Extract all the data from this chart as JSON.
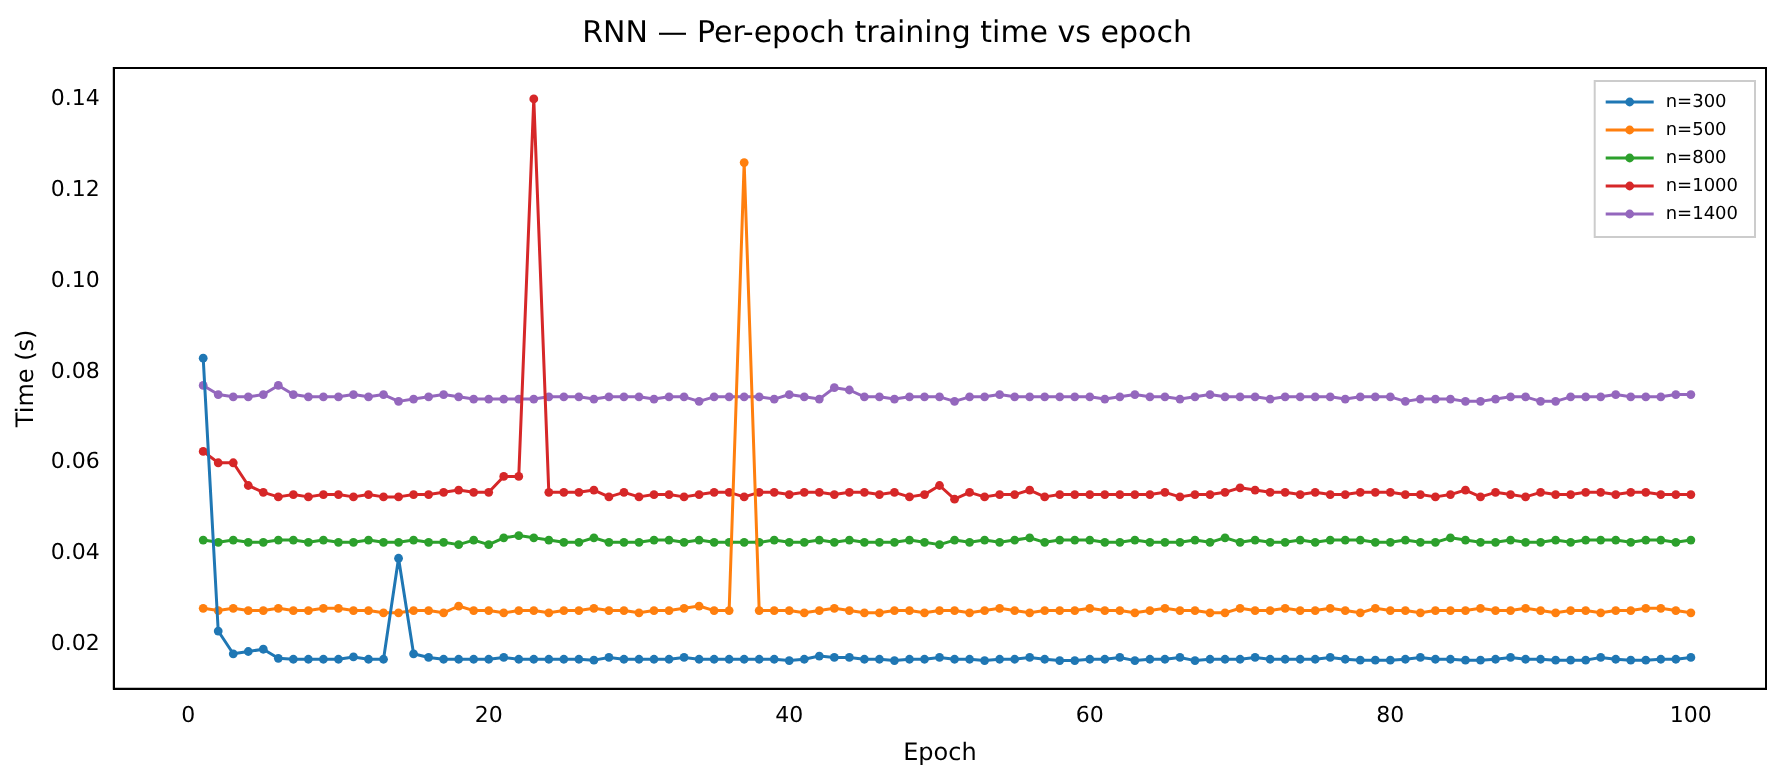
{
  "chart_data": {
    "type": "line",
    "title": "RNN — Per-epoch training time vs epoch",
    "xlabel": "Epoch",
    "ylabel": "Time (s)",
    "x": [
      1,
      2,
      3,
      4,
      5,
      6,
      7,
      8,
      9,
      10,
      11,
      12,
      13,
      14,
      15,
      16,
      17,
      18,
      19,
      20,
      21,
      22,
      23,
      24,
      25,
      26,
      27,
      28,
      29,
      30,
      31,
      32,
      33,
      34,
      35,
      36,
      37,
      38,
      39,
      40,
      41,
      42,
      43,
      44,
      45,
      46,
      47,
      48,
      49,
      50,
      51,
      52,
      53,
      54,
      55,
      56,
      57,
      58,
      59,
      60,
      61,
      62,
      63,
      64,
      65,
      66,
      67,
      68,
      69,
      70,
      71,
      72,
      73,
      74,
      75,
      76,
      77,
      78,
      79,
      80,
      81,
      82,
      83,
      84,
      85,
      86,
      87,
      88,
      89,
      90,
      91,
      92,
      93,
      94,
      95,
      96,
      97,
      98,
      99,
      100
    ],
    "xlim": [
      -4.95,
      105
    ],
    "xticks": [
      0,
      20,
      40,
      60,
      80,
      100
    ],
    "ylim": [
      0.0103,
      0.1468
    ],
    "yticks": [
      0.02,
      0.04,
      0.06,
      0.08,
      {
        "value": 0.1,
        "label": "0.10"
      },
      0.12,
      0.14
    ],
    "legend": "top right",
    "grid": false,
    "marker": "circle",
    "line_style": "solid",
    "series": [
      {
        "name": "n=300",
        "color": "#1f77b4",
        "values": [
          0.083,
          0.023,
          0.018,
          0.0185,
          0.019,
          0.017,
          0.0168,
          0.0168,
          0.0168,
          0.0168,
          0.0173,
          0.0168,
          0.0168,
          0.039,
          0.018,
          0.0172,
          0.0168,
          0.0168,
          0.0168,
          0.0168,
          0.0172,
          0.0168,
          0.0168,
          0.0168,
          0.0168,
          0.0168,
          0.0166,
          0.0172,
          0.0168,
          0.0168,
          0.0168,
          0.0168,
          0.0172,
          0.0168,
          0.0168,
          0.0168,
          0.0168,
          0.0168,
          0.0168,
          0.0165,
          0.0168,
          0.0175,
          0.0172,
          0.0172,
          0.0168,
          0.0168,
          0.0165,
          0.0168,
          0.0168,
          0.0172,
          0.0168,
          0.0168,
          0.0165,
          0.0168,
          0.0168,
          0.0172,
          0.0168,
          0.0165,
          0.0165,
          0.0168,
          0.0168,
          0.0172,
          0.0165,
          0.0168,
          0.0168,
          0.0172,
          0.0165,
          0.0168,
          0.0168,
          0.0168,
          0.0172,
          0.0168,
          0.0168,
          0.0168,
          0.0168,
          0.0172,
          0.0168,
          0.0166,
          0.0166,
          0.0166,
          0.0168,
          0.0172,
          0.0168,
          0.0168,
          0.0166,
          0.0166,
          0.0168,
          0.0172,
          0.0168,
          0.0168,
          0.0166,
          0.0166,
          0.0166,
          0.0172,
          0.0168,
          0.0166,
          0.0166,
          0.0168,
          0.0168,
          0.0172
        ]
      },
      {
        "name": "n=500",
        "color": "#ff7f0e",
        "values": [
          0.028,
          0.0275,
          0.028,
          0.0275,
          0.0275,
          0.028,
          0.0275,
          0.0275,
          0.028,
          0.028,
          0.0275,
          0.0275,
          0.027,
          0.027,
          0.0275,
          0.0275,
          0.027,
          0.0285,
          0.0275,
          0.0275,
          0.027,
          0.0275,
          0.0275,
          0.027,
          0.0275,
          0.0275,
          0.028,
          0.0275,
          0.0275,
          0.027,
          0.0275,
          0.0275,
          0.028,
          0.0285,
          0.0275,
          0.0275,
          0.126,
          0.0275,
          0.0275,
          0.0275,
          0.027,
          0.0275,
          0.028,
          0.0275,
          0.027,
          0.027,
          0.0275,
          0.0275,
          0.027,
          0.0275,
          0.0275,
          0.027,
          0.0275,
          0.028,
          0.0275,
          0.027,
          0.0275,
          0.0275,
          0.0275,
          0.028,
          0.0275,
          0.0275,
          0.027,
          0.0275,
          0.028,
          0.0275,
          0.0275,
          0.027,
          0.027,
          0.028,
          0.0275,
          0.0275,
          0.028,
          0.0275,
          0.0275,
          0.028,
          0.0275,
          0.027,
          0.028,
          0.0275,
          0.0275,
          0.027,
          0.0275,
          0.0275,
          0.0275,
          0.028,
          0.0275,
          0.0275,
          0.028,
          0.0275,
          0.027,
          0.0275,
          0.0275,
          0.027,
          0.0275,
          0.0275,
          0.028,
          0.028,
          0.0275,
          0.027
        ]
      },
      {
        "name": "n=800",
        "color": "#2ca02c",
        "values": [
          0.043,
          0.0425,
          0.043,
          0.0425,
          0.0425,
          0.043,
          0.043,
          0.0425,
          0.043,
          0.0425,
          0.0425,
          0.043,
          0.0425,
          0.0425,
          0.043,
          0.0425,
          0.0425,
          0.042,
          0.043,
          0.042,
          0.0435,
          0.044,
          0.0435,
          0.043,
          0.0425,
          0.0425,
          0.0435,
          0.0425,
          0.0425,
          0.0425,
          0.043,
          0.043,
          0.0425,
          0.043,
          0.0425,
          0.0425,
          0.0425,
          0.0425,
          0.043,
          0.0425,
          0.0425,
          0.043,
          0.0425,
          0.043,
          0.0425,
          0.0425,
          0.0425,
          0.043,
          0.0425,
          0.042,
          0.043,
          0.0425,
          0.043,
          0.0425,
          0.043,
          0.0435,
          0.0425,
          0.043,
          0.043,
          0.043,
          0.0425,
          0.0425,
          0.043,
          0.0425,
          0.0425,
          0.0425,
          0.043,
          0.0425,
          0.0435,
          0.0425,
          0.043,
          0.0425,
          0.0425,
          0.043,
          0.0425,
          0.043,
          0.043,
          0.043,
          0.0425,
          0.0425,
          0.043,
          0.0425,
          0.0425,
          0.0435,
          0.043,
          0.0425,
          0.0425,
          0.043,
          0.0425,
          0.0425,
          0.043,
          0.0425,
          0.043,
          0.043,
          0.043,
          0.0425,
          0.043,
          0.043,
          0.0425,
          0.043
        ]
      },
      {
        "name": "n=1000",
        "color": "#d62728",
        "values": [
          0.0625,
          0.06,
          0.06,
          0.055,
          0.0535,
          0.0525,
          0.053,
          0.0525,
          0.053,
          0.053,
          0.0525,
          0.053,
          0.0525,
          0.0525,
          0.053,
          0.053,
          0.0535,
          0.054,
          0.0535,
          0.0535,
          0.057,
          0.057,
          0.14,
          0.0535,
          0.0535,
          0.0535,
          0.054,
          0.0525,
          0.0535,
          0.0525,
          0.053,
          0.053,
          0.0525,
          0.053,
          0.0535,
          0.0535,
          0.0525,
          0.0535,
          0.0535,
          0.053,
          0.0535,
          0.0535,
          0.053,
          0.0535,
          0.0535,
          0.053,
          0.0535,
          0.0525,
          0.053,
          0.055,
          0.052,
          0.0535,
          0.0525,
          0.053,
          0.053,
          0.054,
          0.0525,
          0.053,
          0.053,
          0.053,
          0.053,
          0.053,
          0.053,
          0.053,
          0.0535,
          0.0525,
          0.053,
          0.053,
          0.0535,
          0.0545,
          0.054,
          0.0535,
          0.0535,
          0.053,
          0.0535,
          0.053,
          0.053,
          0.0535,
          0.0535,
          0.0535,
          0.053,
          0.053,
          0.0525,
          0.053,
          0.054,
          0.0525,
          0.0535,
          0.053,
          0.0525,
          0.0535,
          0.053,
          0.053,
          0.0535,
          0.0535,
          0.053,
          0.0535,
          0.0535,
          0.053,
          0.053,
          0.053
        ]
      },
      {
        "name": "n=1400",
        "color": "#9467bd",
        "values": [
          0.077,
          0.075,
          0.0745,
          0.0745,
          0.075,
          0.077,
          0.075,
          0.0745,
          0.0745,
          0.0745,
          0.075,
          0.0745,
          0.075,
          0.0735,
          0.074,
          0.0745,
          0.075,
          0.0745,
          0.074,
          0.074,
          0.074,
          0.074,
          0.074,
          0.0745,
          0.0745,
          0.0745,
          0.074,
          0.0745,
          0.0745,
          0.0745,
          0.074,
          0.0745,
          0.0745,
          0.0735,
          0.0745,
          0.0745,
          0.0745,
          0.0745,
          0.074,
          0.075,
          0.0745,
          0.074,
          0.0765,
          0.076,
          0.0745,
          0.0745,
          0.074,
          0.0745,
          0.0745,
          0.0745,
          0.0735,
          0.0745,
          0.0745,
          0.075,
          0.0745,
          0.0745,
          0.0745,
          0.0745,
          0.0745,
          0.0745,
          0.074,
          0.0745,
          0.075,
          0.0745,
          0.0745,
          0.074,
          0.0745,
          0.075,
          0.0745,
          0.0745,
          0.0745,
          0.074,
          0.0745,
          0.0745,
          0.0745,
          0.0745,
          0.074,
          0.0745,
          0.0745,
          0.0745,
          0.0735,
          0.074,
          0.074,
          0.074,
          0.0735,
          0.0735,
          0.074,
          0.0745,
          0.0745,
          0.0735,
          0.0735,
          0.0745,
          0.0745,
          0.0745,
          0.075,
          0.0745,
          0.0745,
          0.0745,
          0.075,
          0.075
        ]
      }
    ]
  }
}
